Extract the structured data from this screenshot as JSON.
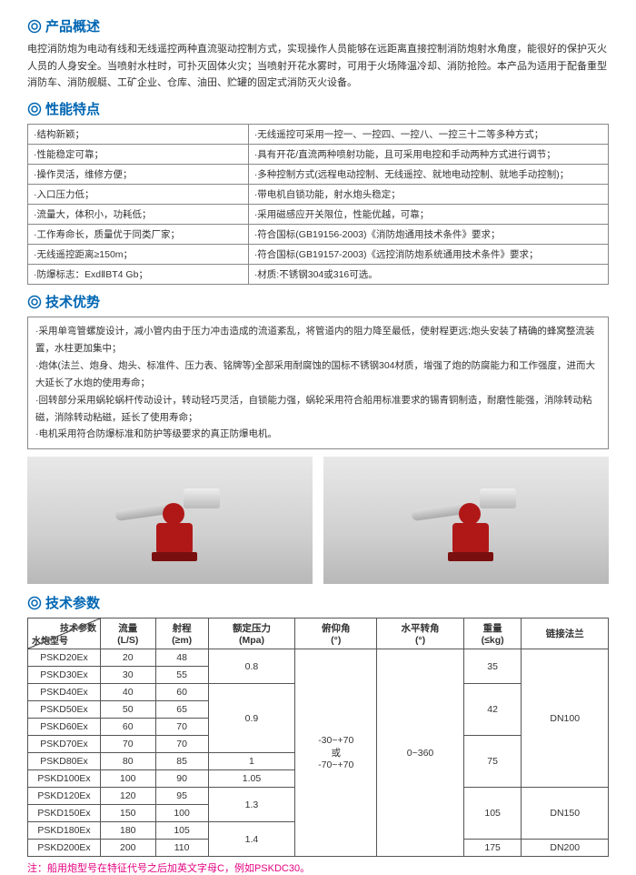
{
  "sections": {
    "overview_title": "产品概述",
    "features_title": "性能特点",
    "advantages_title": "技术优势",
    "params_title": "技术参数"
  },
  "overview_text": "电控消防炮为电动有线和无线遥控两种直流驱动控制方式，实现操作人员能够在远距离直接控制消防炮射水角度，能很好的保护灭火人员的人身安全。当喷射水柱时，可扑灭固体火灾；当喷射开花水雾时，可用于火场降温冷却、消防抢险。本产品为适用于配备重型消防车、消防舰艇、工矿企业、仓库、油田、贮罐的固定式消防灭火设备。",
  "features_rows": [
    [
      "·结构新颖；",
      "·无线遥控可采用一控一、一控四、一控八、一控三十二等多种方式；"
    ],
    [
      "·性能稳定可靠；",
      "·具有开花/直流两种喷射功能，且可采用电控和手动两种方式进行调节；"
    ],
    [
      "·操作灵活，维修方便；",
      "·多种控制方式(远程电动控制、无线遥控、就地电动控制、就地手动控制)；"
    ],
    [
      "·入口压力低；",
      "·带电机自锁功能，射水炮头稳定；"
    ],
    [
      "·流量大，体积小，功耗低；",
      "·采用磁感应开关限位，性能优越，可靠；"
    ],
    [
      "·工作寿命长，质量优于同类厂家；",
      "·符合国标(GB19156-2003)《消防炮通用技术条件》要求；"
    ],
    [
      "·无线遥控距离≥150m；",
      "·符合国标(GB19157-2003)《远控消防炮系统通用技术条件》要求；"
    ],
    [
      "·防爆标志：ExdⅡBT4 Gb；",
      "·材质:不锈钢304或316可选。"
    ]
  ],
  "advantages": [
    "·采用单弯管螺旋设计，减小管内由于压力冲击造成的流道紊乱，将管道内的阻力降至最低，使射程更远;炮头安装了精确的蜂窝整流装置，水柱更加集中；",
    "·炮体(法兰、炮身、炮头、标准件、压力表、铭牌等)全部采用耐腐蚀的国标不锈钢304材质，增强了炮的防腐能力和工作强度，进而大大延长了水炮的使用寿命；",
    "·回转部分采用蜗轮蜗杆传动设计，转动轻巧灵活，自锁能力强，蜗轮采用符合船用标准要求的锡青铜制造，耐磨性能强，消除转动粘磁，消除转动粘磁，延长了使用寿命；",
    "·电机采用符合防爆标准和防护等级要求的真正防爆电机。"
  ],
  "param_headers": {
    "diag_top": "技术参数",
    "diag_bottom": "水炮型号",
    "flow": "流量",
    "flow_unit": "(L/S)",
    "range": "射程",
    "range_unit": "(≥m)",
    "pressure": "额定压力",
    "pressure_unit": "(Mpa)",
    "pitch": "俯仰角",
    "pitch_unit": "(°)",
    "rotate": "水平转角",
    "rotate_unit": "(°)",
    "weight": "重量",
    "weight_unit": "(≤kg)",
    "flange": "链接法兰"
  },
  "param_groups": [
    {
      "pressure": "0.8",
      "weight": "35",
      "flange": "DN100",
      "rows": [
        {
          "model": "PSKD20Ex",
          "flow": "20",
          "range": "48"
        },
        {
          "model": "PSKD30Ex",
          "flow": "30",
          "range": "55"
        }
      ]
    },
    {
      "pressure": "0.9",
      "weight": "42",
      "flange": "",
      "rows": [
        {
          "model": "PSKD40Ex",
          "flow": "40",
          "range": "60"
        },
        {
          "model": "PSKD50Ex",
          "flow": "50",
          "range": "65"
        },
        {
          "model": "PSKD60Ex",
          "flow": "60",
          "range": "70"
        }
      ]
    },
    {
      "pressure": "",
      "weight": "75",
      "flange": "",
      "rows": [
        {
          "model": "PSKD70Ex",
          "flow": "70",
          "range": "70"
        }
      ]
    },
    {
      "pressure": "1",
      "weight": "",
      "flange": "",
      "rows": [
        {
          "model": "PSKD80Ex",
          "flow": "80",
          "range": "85"
        }
      ]
    },
    {
      "pressure": "1.05",
      "weight": "75",
      "flange": "",
      "rows": [
        {
          "model": "PSKD100Ex",
          "flow": "100",
          "range": "90"
        }
      ]
    },
    {
      "pressure": "1.3",
      "weight": "105",
      "flange": "DN150",
      "rows": [
        {
          "model": "PSKD120Ex",
          "flow": "120",
          "range": "95"
        },
        {
          "model": "PSKD150Ex",
          "flow": "150",
          "range": "100"
        }
      ]
    },
    {
      "pressure": "1.4",
      "weight": "175",
      "flange": "DN200",
      "rows": [
        {
          "model": "PSKD180Ex",
          "flow": "180",
          "range": "105"
        },
        {
          "model": "PSKD200Ex",
          "flow": "200",
          "range": "110"
        }
      ]
    }
  ],
  "pitch_text_1": "-30~+70",
  "pitch_text_2": "或",
  "pitch_text_3": "-70~+70",
  "rotate_text": "0~360",
  "note_text": "注：船用炮型号在特征代号之后加英文字母C，例如PSKDC30。",
  "colors": {
    "title": "#0066b3",
    "note": "#e4007f",
    "border": "#555"
  }
}
